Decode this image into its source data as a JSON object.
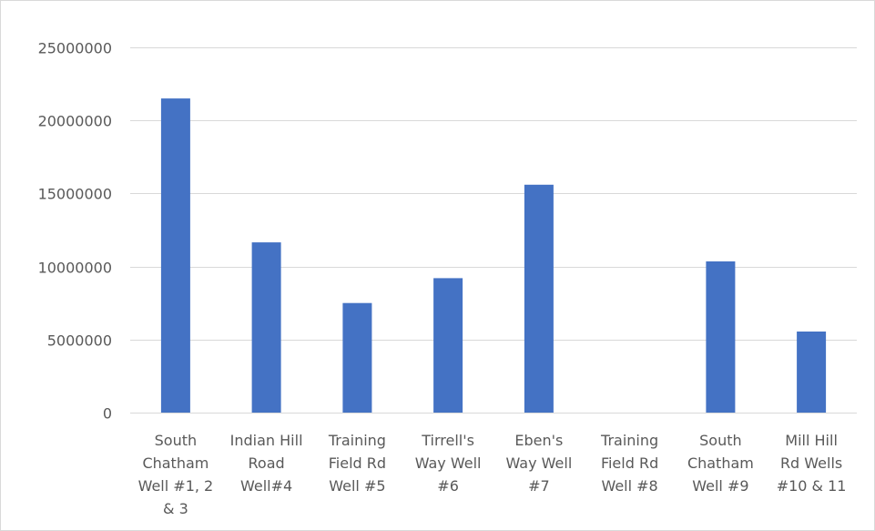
{
  "chart_data": {
    "type": "bar",
    "title": "",
    "xlabel": "",
    "ylabel": "",
    "ylim": [
      0,
      25000000
    ],
    "yticks": [
      0,
      5000000,
      10000000,
      15000000,
      20000000,
      25000000
    ],
    "grid": true,
    "legend": "none",
    "bar_color": "#4472c4",
    "grid_color": "#d9d9d9",
    "label_color": "#595959",
    "categories": [
      "South Chatham Well #1, 2 & 3",
      "Indian Hill Road Well#4",
      "Training Field Rd Well #5",
      "Tirrell's Way Well #6",
      "Eben's Way Well #7",
      "Training Field Rd Well #8",
      "South Chatham Well #9",
      "Mill Hill Rd Wells #10 & 11"
    ],
    "category_lines": [
      [
        "South",
        "Chatham",
        "Well #1, 2",
        "& 3"
      ],
      [
        "Indian Hill",
        "Road",
        "Well#4"
      ],
      [
        "Training",
        "Field Rd",
        "Well #5"
      ],
      [
        "Tirrell's",
        "Way Well",
        "#6"
      ],
      [
        "Eben's",
        "Way Well",
        "#7"
      ],
      [
        "Training",
        "Field Rd",
        "Well #8"
      ],
      [
        "South",
        "Chatham",
        "Well #9"
      ],
      [
        "Mill Hill",
        "Rd Wells",
        "#10 & 11"
      ]
    ],
    "values": [
      21500000,
      11650000,
      7500000,
      9200000,
      15600000,
      0,
      10350000,
      5550000
    ]
  }
}
